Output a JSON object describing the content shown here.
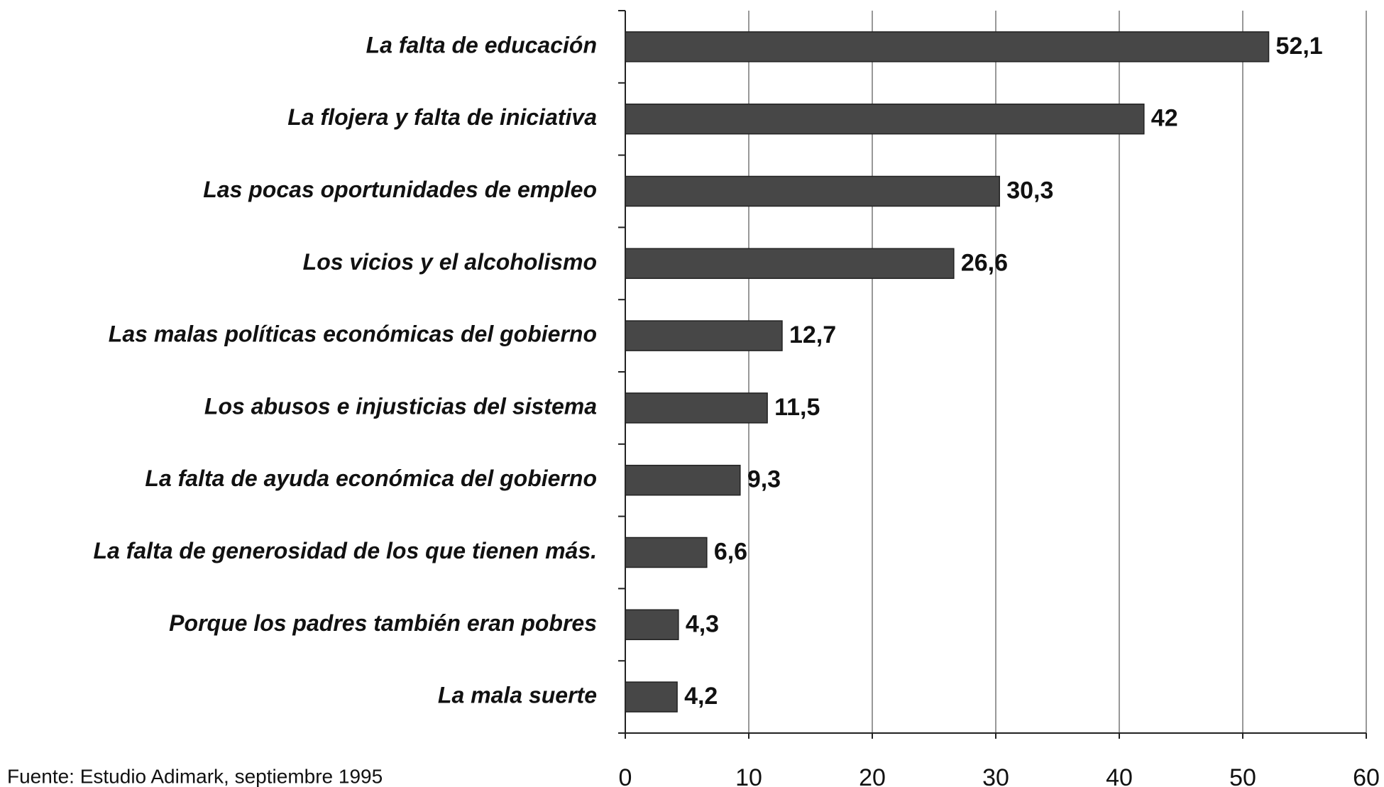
{
  "chart_data": {
    "type": "hbar",
    "categories": [
      "La falta de educación",
      "La flojera y falta de iniciativa",
      "Las pocas oportunidades de empleo",
      "Los vicios y el alcoholismo",
      "Las malas políticas económicas del gobierno",
      "Los abusos e injusticias del sistema",
      "La falta de ayuda económica del gobierno",
      "La falta de generosidad de los que tienen más.",
      "Porque los padres también eran pobres",
      "La mala suerte"
    ],
    "values": [
      52.1,
      42,
      30.3,
      26.6,
      12.7,
      11.5,
      9.3,
      6.6,
      4.3,
      4.2
    ],
    "value_labels": [
      "52,1",
      "42",
      "30,3",
      "26,6",
      "12,7",
      "11,5",
      "9,3",
      "6,6",
      "4,3",
      "4,2"
    ],
    "color": "#474747",
    "xlim": [
      0,
      60
    ],
    "xticks": [
      0,
      10,
      20,
      30,
      40,
      50,
      60
    ],
    "grid": true,
    "source": "Fuente: Estudio Adimark, septiembre 1995"
  }
}
